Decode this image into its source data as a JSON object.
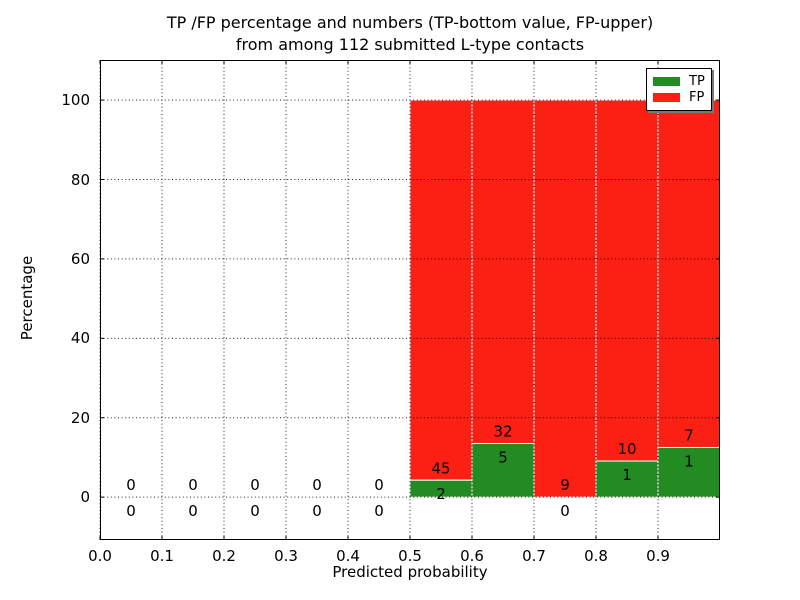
{
  "chart_data": {
    "type": "bar",
    "stacked": true,
    "title_lines": [
      "TP /FP percentage and numbers (TP-bottom value, FP-upper)",
      "from among 112 submitted L-type contacts"
    ],
    "xlabel": "Predicted probability",
    "ylabel": "Percentage",
    "xlim": [
      0.0,
      1.0
    ],
    "ylim": [
      -10.8,
      110.1
    ],
    "xtick_values": [
      0.0,
      0.1,
      0.2,
      0.3,
      0.4,
      0.5,
      0.6,
      0.7,
      0.8,
      0.9
    ],
    "xtick_labels": [
      "0.0",
      "0.1",
      "0.2",
      "0.3",
      "0.4",
      "0.5",
      "0.6",
      "0.7",
      "0.8",
      "0.9"
    ],
    "ytick_values": [
      0,
      20,
      40,
      60,
      80,
      100
    ],
    "ytick_labels": [
      "0",
      "20",
      "40",
      "60",
      "80",
      "100"
    ],
    "grid": {
      "style": "dotted",
      "color": "#000000",
      "above_bars": true
    },
    "bin_width": 0.1,
    "total_contacts": 112,
    "bins": [
      {
        "center": 0.05,
        "tp_count": 0,
        "fp_count": 0,
        "tp_pct": 0,
        "fp_pct": 0
      },
      {
        "center": 0.15,
        "tp_count": 0,
        "fp_count": 0,
        "tp_pct": 0,
        "fp_pct": 0
      },
      {
        "center": 0.25,
        "tp_count": 0,
        "fp_count": 0,
        "tp_pct": 0,
        "fp_pct": 0
      },
      {
        "center": 0.35,
        "tp_count": 0,
        "fp_count": 0,
        "tp_pct": 0,
        "fp_pct": 0
      },
      {
        "center": 0.45,
        "tp_count": 0,
        "fp_count": 0,
        "tp_pct": 0,
        "fp_pct": 0
      },
      {
        "center": 0.55,
        "tp_count": 2,
        "fp_count": 45,
        "tp_pct": 4.26,
        "fp_pct": 95.74
      },
      {
        "center": 0.65,
        "tp_count": 5,
        "fp_count": 32,
        "tp_pct": 13.51,
        "fp_pct": 86.49
      },
      {
        "center": 0.75,
        "tp_count": 0,
        "fp_count": 9,
        "tp_pct": 0,
        "fp_pct": 100
      },
      {
        "center": 0.85,
        "tp_count": 1,
        "fp_count": 10,
        "tp_pct": 9.09,
        "fp_pct": 90.91
      },
      {
        "center": 0.95,
        "tp_count": 1,
        "fp_count": 7,
        "tp_pct": 12.5,
        "fp_pct": 87.5
      }
    ],
    "series": [
      {
        "name": "TP",
        "color": "#228b22"
      },
      {
        "name": "FP",
        "color": "#fb1f14"
      }
    ],
    "legend": {
      "position": "upper right",
      "items": [
        "TP",
        "FP"
      ]
    }
  }
}
